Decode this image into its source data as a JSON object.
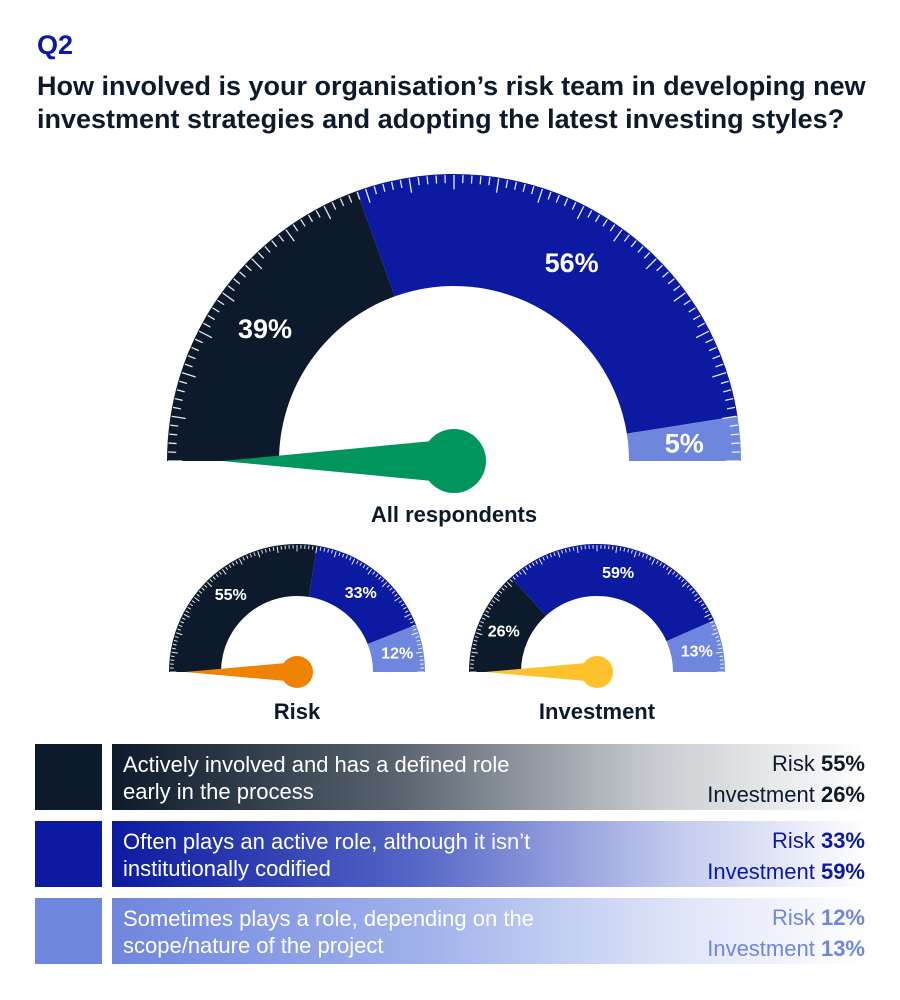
{
  "header": {
    "qnum": "Q2",
    "question": "How involved is your organisation’s risk team in developing new investment strategies and adopting the latest investing styles?"
  },
  "colors": {
    "actively": "#0d1a2b",
    "often": "#0b1aa0",
    "sometimes": "#6f86de",
    "needle_all": "#00955c",
    "needle_risk": "#ef8200",
    "needle_investment": "#ffc22c"
  },
  "chart_data": [
    {
      "type": "gauge",
      "name": "All respondents",
      "categories": [
        "Actively involved and has a defined role early in the process",
        "Often plays an active role, although it isn’t institutionally codified",
        "Sometimes plays a role, depending on the scope/nature of the project"
      ],
      "values": [
        39,
        56,
        5
      ],
      "labels": [
        "39%",
        "56%",
        "5%"
      ]
    },
    {
      "type": "gauge",
      "name": "Risk",
      "categories": [
        "Actively involved and has a defined role early in the process",
        "Often plays an active role, although it isn’t institutionally codified",
        "Sometimes plays a role, depending on the scope/nature of the project"
      ],
      "values": [
        55,
        33,
        12
      ],
      "labels": [
        "55%",
        "33%",
        "12%"
      ]
    },
    {
      "type": "gauge",
      "name": "Investment",
      "categories": [
        "Actively involved and has a defined role early in the process",
        "Often plays an active role, although it isn’t institutionally codified",
        "Sometimes plays a role, depending on the scope/nature of the project"
      ],
      "values": [
        26,
        59,
        13
      ],
      "labels": [
        "26%",
        "59%",
        "13%"
      ]
    }
  ],
  "legend": [
    {
      "label": "Actively involved and has a defined role early in the process",
      "risk_label": "Risk",
      "risk_value": "55%",
      "investment_label": "Investment",
      "investment_value": "26%"
    },
    {
      "label": "Often plays an active role, although it isn’t institutionally codified",
      "risk_label": "Risk",
      "risk_value": "33%",
      "investment_label": "Investment",
      "investment_value": "59%"
    },
    {
      "label": "Sometimes plays a role, depending on the scope/nature of the project",
      "risk_label": "Risk",
      "risk_value": "12%",
      "investment_label": "Investment",
      "investment_value": "13%"
    }
  ]
}
